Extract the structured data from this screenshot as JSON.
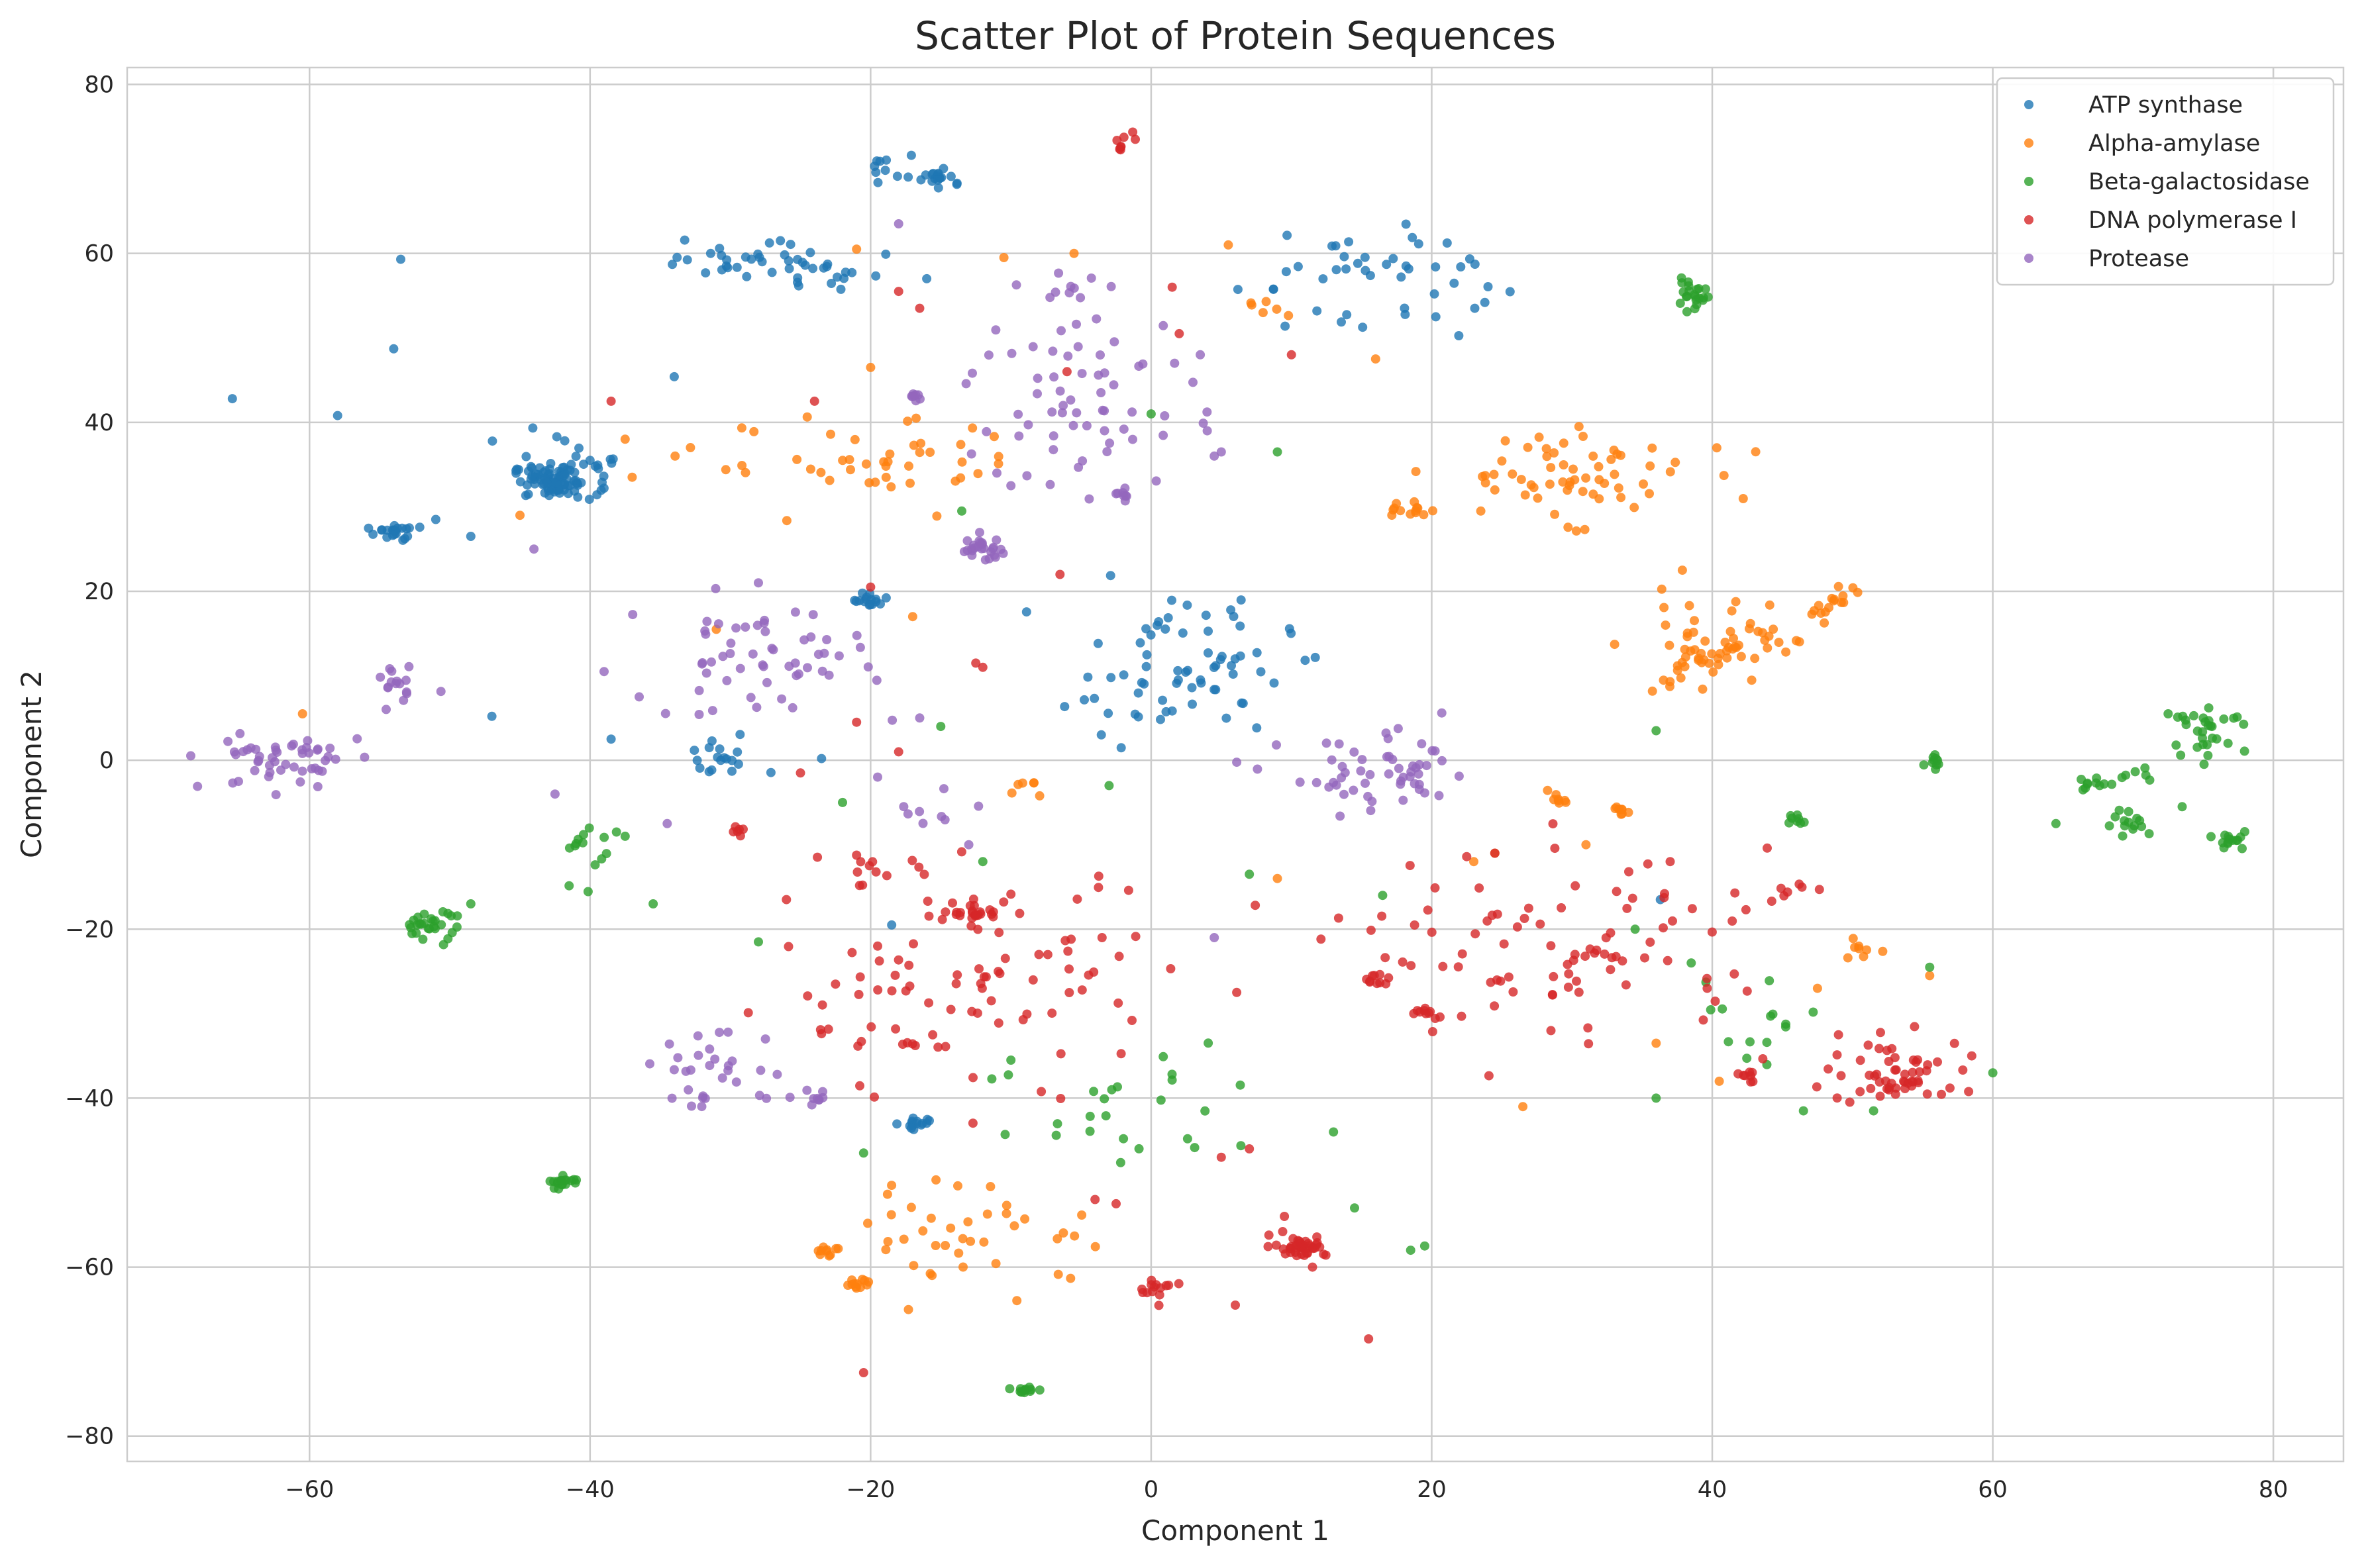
{
  "chart_data": {
    "type": "scatter",
    "title": "Scatter Plot of Protein Sequences",
    "xlabel": "Component 1",
    "ylabel": "Component 2",
    "xlim": [
      -73,
      85
    ],
    "ylim": [
      -83,
      82
    ],
    "xticks": [
      -60,
      -40,
      -20,
      0,
      20,
      40,
      60,
      80
    ],
    "yticks": [
      -80,
      -60,
      -40,
      -20,
      0,
      20,
      40,
      60,
      80
    ],
    "xtick_labels": [
      "−60",
      "−40",
      "−20",
      "0",
      "20",
      "40",
      "60",
      "80"
    ],
    "ytick_labels": [
      "−80",
      "−60",
      "−40",
      "−20",
      "0",
      "20",
      "40",
      "60",
      "80"
    ],
    "grid": true,
    "legend_position": "top-right",
    "series": [
      {
        "name": "ATP synthase",
        "color": "#1f77b4",
        "clusters": [
          {
            "cx": -42.5,
            "cy": 33,
            "n": 90,
            "sx": 1.5,
            "sy": 1.0
          },
          {
            "cx": -54,
            "cy": 27,
            "n": 22,
            "sx": 0.7,
            "sy": 0.5
          },
          {
            "cx": -20,
            "cy": 19,
            "n": 16,
            "sx": 0.6,
            "sy": 0.4
          },
          {
            "cx": -16.5,
            "cy": -43,
            "n": 15,
            "sx": 0.5,
            "sy": 0.4
          },
          {
            "cx": -15,
            "cy": 69,
            "n": 18,
            "sx": 0.8,
            "sy": 0.6
          },
          {
            "cx": -18.5,
            "cy": 70,
            "n": 10,
            "sx": 1.0,
            "sy": 0.8
          },
          {
            "cx": -29,
            "cy": 60,
            "n": 25,
            "sx": 3.0,
            "sy": 1.4
          },
          {
            "cx": -23,
            "cy": 58,
            "n": 20,
            "sx": 2.0,
            "sy": 1.6
          },
          {
            "cx": 15,
            "cy": 57,
            "n": 45,
            "sx": 4.5,
            "sy": 3.5
          },
          {
            "cx": 2,
            "cy": 11,
            "n": 70,
            "sx": 4.0,
            "sy": 4.0
          },
          {
            "cx": -31,
            "cy": 0,
            "n": 18,
            "sx": 1.5,
            "sy": 1.3
          },
          {
            "cx": -41,
            "cy": 36,
            "n": 12,
            "sx": 2.5,
            "sy": 2.0
          }
        ],
        "points": [
          [
            -65.5,
            42.8
          ],
          [
            -58,
            40.8
          ],
          [
            -54,
            48.7
          ],
          [
            -53.5,
            59.3
          ],
          [
            -34,
            45.4
          ],
          [
            -47,
            5.2
          ],
          [
            -23.5,
            0.2
          ],
          [
            -16,
            57
          ],
          [
            -18.5,
            -19.5
          ],
          [
            -51,
            28.5
          ],
          [
            -48.5,
            26.5
          ],
          [
            -40,
            35.5
          ],
          [
            -38.5,
            2.5
          ],
          [
            36.3,
            -16.5
          ]
        ]
      },
      {
        "name": "Alpha-amylase",
        "color": "#ff7f0e",
        "clusters": [
          {
            "cx": 30,
            "cy": 34,
            "n": 60,
            "sx": 4.5,
            "sy": 2.6
          },
          {
            "cx": 39,
            "cy": 13,
            "n": 55,
            "sx": 2.8,
            "sy": 3.2
          },
          {
            "cx": 48.5,
            "cy": 18.5,
            "n": 16,
            "sx": 1.0,
            "sy": 1.0
          },
          {
            "cx": 44,
            "cy": 14,
            "n": 10,
            "sx": 0.8,
            "sy": 0.8
          },
          {
            "cx": 18.5,
            "cy": 29.5,
            "n": 12,
            "sx": 0.6,
            "sy": 0.4
          },
          {
            "cx": -21,
            "cy": -62,
            "n": 12,
            "sx": 0.5,
            "sy": 0.4
          },
          {
            "cx": -23,
            "cy": -58,
            "n": 10,
            "sx": 0.5,
            "sy": 0.5
          },
          {
            "cx": -12,
            "cy": -56,
            "n": 40,
            "sx": 4.5,
            "sy": 3.0
          },
          {
            "cx": -20,
            "cy": 35,
            "n": 45,
            "sx": 6.0,
            "sy": 2.6
          },
          {
            "cx": 29,
            "cy": -5,
            "n": 8,
            "sx": 0.5,
            "sy": 0.5
          },
          {
            "cx": 33.5,
            "cy": -6,
            "n": 8,
            "sx": 0.4,
            "sy": 0.4
          },
          {
            "cx": 50.5,
            "cy": -22.5,
            "n": 8,
            "sx": 0.8,
            "sy": 0.5
          },
          {
            "cx": -9,
            "cy": -3.5,
            "n": 6,
            "sx": 0.5,
            "sy": 0.6
          },
          {
            "cx": 8,
            "cy": 53,
            "n": 6,
            "sx": 1.0,
            "sy": 0.7
          }
        ],
        "points": [
          [
            -37.5,
            38
          ],
          [
            -37,
            33.5
          ],
          [
            -45,
            29
          ],
          [
            -17,
            17
          ],
          [
            -20,
            46.5
          ],
          [
            -21,
            60.5
          ],
          [
            -60.5,
            5.5
          ],
          [
            -5.5,
            60
          ],
          [
            -10.5,
            59.5
          ],
          [
            16,
            47.5
          ],
          [
            5.5,
            61
          ],
          [
            23.5,
            29.5
          ],
          [
            24.5,
            32
          ],
          [
            30.5,
            39.5
          ],
          [
            36,
            -33.5
          ],
          [
            40.5,
            -38
          ],
          [
            26.5,
            -41
          ],
          [
            9,
            -14
          ],
          [
            47.5,
            -27
          ],
          [
            55.5,
            -25.5
          ],
          [
            31,
            -10
          ],
          [
            24.5,
            -11
          ],
          [
            23,
            -12
          ],
          [
            -31,
            15.5
          ]
        ]
      },
      {
        "name": "Beta-galactosidase",
        "color": "#2ca02c",
        "clusters": [
          {
            "cx": 38.5,
            "cy": 55,
            "n": 22,
            "sx": 0.7,
            "sy": 0.8
          },
          {
            "cx": -51.5,
            "cy": -19.5,
            "n": 28,
            "sx": 1.0,
            "sy": 0.9
          },
          {
            "cx": -42,
            "cy": -50,
            "n": 18,
            "sx": 0.6,
            "sy": 0.4
          },
          {
            "cx": -9,
            "cy": -74.5,
            "n": 12,
            "sx": 0.5,
            "sy": 0.4
          },
          {
            "cx": 75.5,
            "cy": 3.5,
            "n": 30,
            "sx": 1.3,
            "sy": 1.2
          },
          {
            "cx": 77,
            "cy": -9.5,
            "n": 14,
            "sx": 0.6,
            "sy": 0.6
          },
          {
            "cx": 70,
            "cy": -7.5,
            "n": 14,
            "sx": 1.0,
            "sy": 0.8
          },
          {
            "cx": 67,
            "cy": -3,
            "n": 10,
            "sx": 0.7,
            "sy": 0.5
          },
          {
            "cx": 55.8,
            "cy": 0.5,
            "n": 10,
            "sx": 0.3,
            "sy": 0.6
          },
          {
            "cx": 46,
            "cy": -7,
            "n": 8,
            "sx": 0.5,
            "sy": 0.4
          },
          {
            "cx": -40,
            "cy": -12,
            "n": 14,
            "sx": 1.5,
            "sy": 3.5
          },
          {
            "cx": 0,
            "cy": -42,
            "n": 25,
            "sx": 6.0,
            "sy": 5.0
          },
          {
            "cx": 43,
            "cy": -30,
            "n": 14,
            "sx": 2.5,
            "sy": 3.0
          },
          {
            "cx": 71,
            "cy": -1.5,
            "n": 6,
            "sx": 0.7,
            "sy": 0.5
          }
        ],
        "points": [
          [
            -48.5,
            -17
          ],
          [
            -35.5,
            -17
          ],
          [
            -37.5,
            -9
          ],
          [
            -20.5,
            -46.5
          ],
          [
            -28,
            -21.5
          ],
          [
            -22,
            -5
          ],
          [
            -12,
            -12
          ],
          [
            -15,
            4
          ],
          [
            -13.5,
            29.5
          ],
          [
            -10,
            -35.5
          ],
          [
            -3,
            -3
          ],
          [
            0,
            41
          ],
          [
            9,
            36.5
          ],
          [
            7,
            -13.5
          ],
          [
            18.5,
            -58
          ],
          [
            19.5,
            -57.5
          ],
          [
            14.5,
            -53
          ],
          [
            36,
            3.5
          ],
          [
            36,
            -40
          ],
          [
            46.5,
            -41.5
          ],
          [
            51.5,
            -41.5
          ],
          [
            55.5,
            -24.5
          ],
          [
            60,
            -37
          ],
          [
            64.5,
            -7.5
          ],
          [
            72.5,
            5.5
          ],
          [
            73.5,
            -5.5
          ],
          [
            13,
            -44
          ],
          [
            16.5,
            -16
          ],
          [
            34.5,
            -20
          ],
          [
            38.5,
            -24
          ]
        ]
      },
      {
        "name": "DNA polymerase I",
        "color": "#d62728",
        "clusters": [
          {
            "cx": 10.5,
            "cy": -57.5,
            "n": 40,
            "sx": 1.0,
            "sy": 0.6
          },
          {
            "cx": 0.5,
            "cy": -62.5,
            "n": 14,
            "sx": 0.7,
            "sy": 0.6
          },
          {
            "cx": 53.5,
            "cy": -37,
            "n": 55,
            "sx": 2.8,
            "sy": 2.0
          },
          {
            "cx": -12.5,
            "cy": -18,
            "n": 22,
            "sx": 0.8,
            "sy": 0.7
          },
          {
            "cx": 16,
            "cy": -26,
            "n": 10,
            "sx": 0.5,
            "sy": 0.4
          },
          {
            "cx": 19.5,
            "cy": -30,
            "n": 10,
            "sx": 0.5,
            "sy": 0.4
          },
          {
            "cx": 42.5,
            "cy": -37.5,
            "n": 8,
            "sx": 0.5,
            "sy": 0.4
          },
          {
            "cx": 30,
            "cy": -22,
            "n": 90,
            "sx": 7.5,
            "sy": 5.5
          },
          {
            "cx": -13,
            "cy": -27,
            "n": 90,
            "sx": 7.0,
            "sy": 6.5
          },
          {
            "cx": -29.5,
            "cy": -8.5,
            "n": 6,
            "sx": 0.4,
            "sy": 0.3
          },
          {
            "cx": 45.5,
            "cy": -15.5,
            "n": 7,
            "sx": 0.6,
            "sy": 0.6
          },
          {
            "cx": -2,
            "cy": 72.5,
            "n": 8,
            "sx": 0.5,
            "sy": 1.0
          },
          {
            "cx": -20,
            "cy": -12,
            "n": 10,
            "sx": 1.5,
            "sy": 0.8
          }
        ],
        "points": [
          [
            -38.5,
            42.5
          ],
          [
            -24,
            42.5
          ],
          [
            -18,
            55.5
          ],
          [
            -21,
            4.5
          ],
          [
            -20,
            20.5
          ],
          [
            -12,
            11
          ],
          [
            -12.5,
            11.5
          ],
          [
            -16.5,
            53.5
          ],
          [
            -6,
            46
          ],
          [
            -6.5,
            22
          ],
          [
            1.5,
            56
          ],
          [
            2,
            50.5
          ],
          [
            10,
            48
          ],
          [
            15.5,
            -68.5
          ],
          [
            -20.5,
            -72.5
          ],
          [
            -4,
            -52
          ],
          [
            -2.5,
            -52.5
          ],
          [
            5,
            -47
          ],
          [
            7,
            -46
          ],
          [
            6,
            -64.5
          ],
          [
            9.5,
            -54
          ],
          [
            11.5,
            -60
          ],
          [
            -3.5,
            -21
          ],
          [
            -8,
            -23
          ],
          [
            -19.5,
            -22
          ],
          [
            -25,
            -1.5
          ],
          [
            -18,
            1
          ],
          [
            -26,
            -16.5
          ],
          [
            -22.5,
            -26.5
          ],
          [
            49,
            -32.5
          ],
          [
            58.5,
            -35
          ],
          [
            37,
            -12
          ],
          [
            24.5,
            -11
          ],
          [
            28.5,
            -32
          ]
        ]
      },
      {
        "name": "Protease",
        "color": "#9467bd",
        "clusters": [
          {
            "cx": -12,
            "cy": 25,
            "n": 26,
            "sx": 0.8,
            "sy": 0.7
          },
          {
            "cx": -17,
            "cy": 43,
            "n": 8,
            "sx": 0.4,
            "sy": 0.3
          },
          {
            "cx": -2,
            "cy": 31.5,
            "n": 8,
            "sx": 0.4,
            "sy": 0.4
          },
          {
            "cx": 16.5,
            "cy": -2,
            "n": 55,
            "sx": 3.5,
            "sy": 2.3
          },
          {
            "cx": -62,
            "cy": 0,
            "n": 50,
            "sx": 2.8,
            "sy": 1.8
          },
          {
            "cx": -53.5,
            "cy": 8,
            "n": 16,
            "sx": 0.8,
            "sy": 1.8
          },
          {
            "cx": -28,
            "cy": 12,
            "n": 55,
            "sx": 4.0,
            "sy": 3.5
          },
          {
            "cx": -31,
            "cy": -37,
            "n": 30,
            "sx": 2.8,
            "sy": 2.0
          },
          {
            "cx": -23.5,
            "cy": -40,
            "n": 8,
            "sx": 0.8,
            "sy": 0.6
          },
          {
            "cx": -5,
            "cy": 43,
            "n": 60,
            "sx": 4.0,
            "sy": 5.5
          },
          {
            "cx": -5,
            "cy": 56,
            "n": 10,
            "sx": 1.5,
            "sy": 1.0
          },
          {
            "cx": -15,
            "cy": -6,
            "n": 8,
            "sx": 2.0,
            "sy": 1.5
          }
        ],
        "points": [
          [
            -44,
            25
          ],
          [
            -39,
            10.5
          ],
          [
            -42.5,
            -4
          ],
          [
            -34.5,
            -7.5
          ],
          [
            -36.5,
            7.5
          ],
          [
            -28,
            21
          ],
          [
            -18,
            63.5
          ],
          [
            -16.5,
            5
          ],
          [
            -11,
            34
          ],
          [
            -10,
            32.5
          ],
          [
            3.5,
            48
          ],
          [
            4,
            39
          ],
          [
            5,
            36.5
          ],
          [
            4.5,
            36
          ],
          [
            -27.5,
            -33
          ],
          [
            -19.5,
            -2
          ],
          [
            -13,
            -10
          ],
          [
            4.5,
            -21
          ]
        ]
      }
    ]
  }
}
